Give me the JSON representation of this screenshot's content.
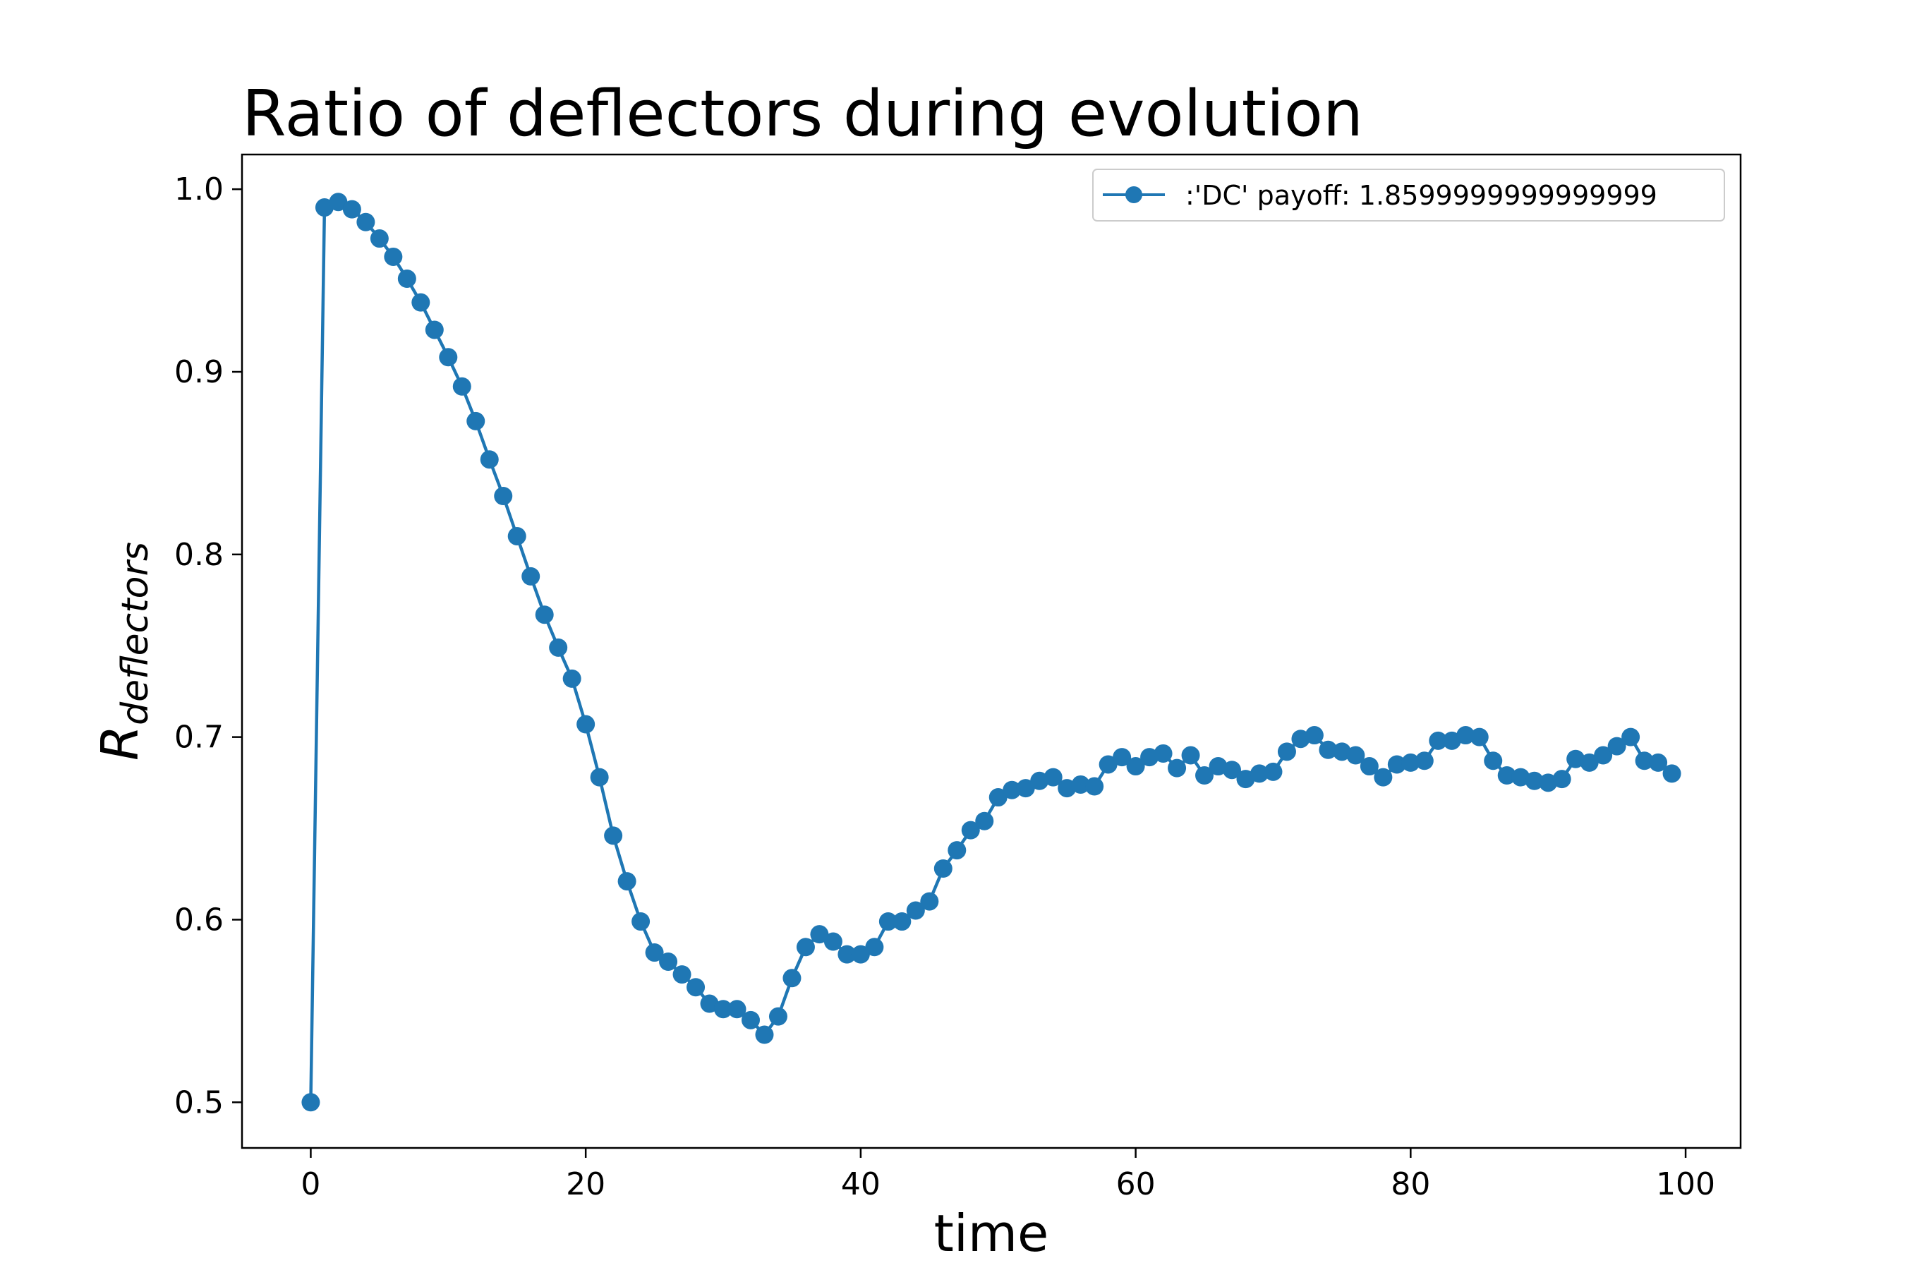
{
  "chart_data": {
    "type": "line",
    "title": "Ratio of deflectors during evolution",
    "xlabel": "time",
    "ylabel": "R",
    "ylabel_subscript": "deflectors",
    "xlim": [
      -5,
      104
    ],
    "ylim": [
      0.475,
      1.019
    ],
    "xticks": [
      0,
      20,
      40,
      60,
      80,
      100
    ],
    "xtick_labels": [
      "0",
      "20",
      "40",
      "60",
      "80",
      "100"
    ],
    "yticks": [
      0.5,
      0.6,
      0.7,
      0.8,
      0.9,
      1.0
    ],
    "ytick_labels": [
      "0.5",
      "0.6",
      "0.7",
      "0.8",
      "0.9",
      "1.0"
    ],
    "grid": false,
    "legend_position": "top-right",
    "series": [
      {
        "name": ":'DC' payoff: 1.8599999999999999",
        "color": "#1f77b4",
        "marker": "circle",
        "x": [
          0,
          1,
          2,
          3,
          4,
          5,
          6,
          7,
          8,
          9,
          10,
          11,
          12,
          13,
          14,
          15,
          16,
          17,
          18,
          19,
          20,
          21,
          22,
          23,
          24,
          25,
          26,
          27,
          28,
          29,
          30,
          31,
          32,
          33,
          34,
          35,
          36,
          37,
          38,
          39,
          40,
          41,
          42,
          43,
          44,
          45,
          46,
          47,
          48,
          49,
          50,
          51,
          52,
          53,
          54,
          55,
          56,
          57,
          58,
          59,
          60,
          61,
          62,
          63,
          64,
          65,
          66,
          67,
          68,
          69,
          70,
          71,
          72,
          73,
          74,
          75,
          76,
          77,
          78,
          79,
          80,
          81,
          82,
          83,
          84,
          85,
          86,
          87,
          88,
          89,
          90,
          91,
          92,
          93,
          94,
          95,
          96,
          97,
          98,
          99
        ],
        "values": [
          0.5,
          0.99,
          0.993,
          0.989,
          0.982,
          0.973,
          0.963,
          0.951,
          0.938,
          0.923,
          0.908,
          0.892,
          0.873,
          0.852,
          0.832,
          0.81,
          0.788,
          0.767,
          0.749,
          0.732,
          0.707,
          0.678,
          0.646,
          0.621,
          0.599,
          0.582,
          0.577,
          0.57,
          0.563,
          0.554,
          0.551,
          0.551,
          0.545,
          0.537,
          0.547,
          0.568,
          0.585,
          0.592,
          0.588,
          0.581,
          0.581,
          0.585,
          0.599,
          0.599,
          0.605,
          0.61,
          0.628,
          0.638,
          0.649,
          0.654,
          0.667,
          0.671,
          0.672,
          0.676,
          0.678,
          0.672,
          0.674,
          0.673,
          0.685,
          0.689,
          0.684,
          0.689,
          0.691,
          0.683,
          0.69,
          0.679,
          0.684,
          0.682,
          0.677,
          0.68,
          0.681,
          0.692,
          0.699,
          0.701,
          0.693,
          0.692,
          0.69,
          0.684,
          0.678,
          0.685,
          0.686,
          0.687,
          0.698,
          0.698,
          0.701,
          0.7,
          0.687,
          0.679,
          0.678,
          0.676,
          0.675,
          0.677,
          0.688,
          0.686,
          0.69,
          0.695,
          0.7,
          0.687,
          0.686,
          0.68
        ]
      }
    ]
  }
}
